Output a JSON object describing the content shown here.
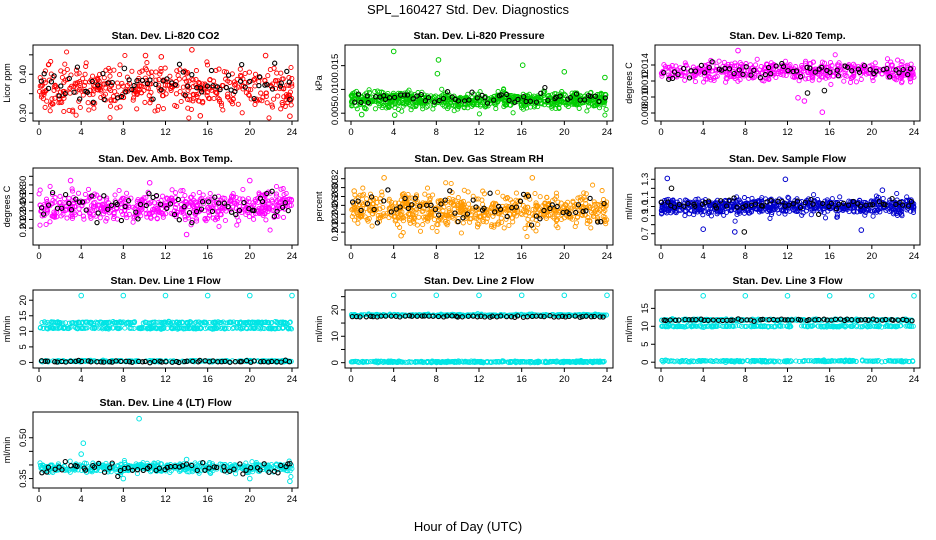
{
  "figure": {
    "title": "SPL_160427  Std. Dev. Diagnostics",
    "xlabel": "Hour of Day (UTC)"
  },
  "chart_data": [
    {
      "type": "scatter",
      "title": "Stan. Dev. Li-820 CO2",
      "xlabel": "",
      "ylabel": "Licor ppm",
      "xlim": [
        0,
        24
      ],
      "ylim": [
        0.29,
        0.465
      ],
      "x_ticks": [
        0,
        4,
        8,
        12,
        16,
        20,
        24
      ],
      "y_ticks": [
        0.3,
        0.35,
        0.4,
        0.45
      ],
      "y_tick_labels": [
        "0.30",
        "",
        "0.40",
        ""
      ],
      "series": [
        {
          "color": "#ff0000",
          "points_approx": 450,
          "mean": 0.365,
          "spread": 0.028,
          "outliers": [
            [
              10.1,
              0.448
            ],
            [
              11.6,
              0.445
            ],
            [
              14.5,
              0.463
            ],
            [
              21.5,
              0.448
            ],
            [
              23.8,
              0.292
            ],
            [
              15.3,
              0.293
            ]
          ]
        },
        {
          "color": "#000000",
          "points_approx": 70,
          "mean": 0.372,
          "spread": 0.022,
          "outliers": [
            [
              8.1,
              0.415
            ],
            [
              23.8,
              0.335
            ]
          ]
        }
      ]
    },
    {
      "type": "scatter",
      "title": "Stan. Dev. Li-820 Pressure",
      "xlabel": "",
      "ylabel": "kPa",
      "xlim": [
        0,
        24
      ],
      "ylim": [
        0.0042,
        0.0185
      ],
      "x_ticks": [
        0,
        4,
        8,
        12,
        16,
        20,
        24
      ],
      "y_ticks": [
        0.005,
        0.01,
        0.015
      ],
      "y_tick_labels": [
        "0.005",
        "0.010",
        "0.015"
      ],
      "series": [
        {
          "color": "#00cc00",
          "points_approx": 700,
          "mean": 0.0078,
          "spread": 0.0009,
          "outliers": [
            [
              4.0,
              0.018
            ],
            [
              8.2,
              0.0162
            ],
            [
              8.1,
              0.0133
            ],
            [
              16.1,
              0.0151
            ],
            [
              20.0,
              0.0137
            ],
            [
              23.8,
              0.0125
            ],
            [
              1.0,
              0.0047
            ],
            [
              4.1,
              0.0046
            ]
          ]
        },
        {
          "color": "#000000",
          "points_approx": 60,
          "mean": 0.0081,
          "spread": 0.0006,
          "outliers": []
        }
      ]
    },
    {
      "type": "scatter",
      "title": "Stan. Dev. Li-820 Temp.",
      "xlabel": "",
      "ylabel": "degrees C",
      "xlim": [
        0,
        24
      ],
      "ylim": [
        0.0075,
        0.016
      ],
      "x_ticks": [
        0,
        4,
        8,
        12,
        16,
        20,
        24
      ],
      "y_ticks": [
        0.008,
        0.01,
        0.012,
        0.014
      ],
      "y_tick_labels": [
        "0.008",
        "0.010",
        "0.012",
        "0.014"
      ],
      "series": [
        {
          "color": "#ff00ff",
          "points_approx": 480,
          "mean": 0.0132,
          "spread": 0.0006,
          "outliers": [
            [
              7.3,
              0.0158
            ],
            [
              15.3,
              0.0081
            ],
            [
              13.0,
              0.0099
            ],
            [
              13.6,
              0.0095
            ]
          ]
        },
        {
          "color": "#000000",
          "points_approx": 60,
          "mean": 0.0133,
          "spread": 0.0005,
          "outliers": [
            [
              13.9,
              0.0105
            ],
            [
              15.5,
              0.0108
            ]
          ]
        }
      ]
    },
    {
      "type": "scatter",
      "title": "Stan. Dev. Amb. Box Temp.",
      "xlabel": "",
      "ylabel": "degrees C",
      "xlim": [
        0,
        24
      ],
      "ylim": [
        0.17,
        0.33
      ],
      "x_ticks": [
        0,
        4,
        8,
        12,
        16,
        20,
        24
      ],
      "y_ticks": [
        0.2,
        0.22,
        0.24,
        0.26,
        0.28,
        0.3,
        0.32
      ],
      "y_tick_labels": [
        "0.20",
        "0.22",
        "0.24",
        "0.26",
        "0.28",
        "0.30",
        ""
      ],
      "series": [
        {
          "color": "#ff00ff",
          "points_approx": 550,
          "mean": 0.25,
          "spread": 0.018,
          "outliers": [
            [
              3.0,
              0.31
            ],
            [
              14.0,
              0.185
            ],
            [
              20.0,
              0.31
            ],
            [
              10.5,
              0.305
            ]
          ]
        },
        {
          "color": "#000000",
          "points_approx": 65,
          "mean": 0.255,
          "spread": 0.018,
          "outliers": []
        }
      ]
    },
    {
      "type": "scatter",
      "title": "Stan. Dev. Gas Stream RH",
      "xlabel": "",
      "ylabel": "percent",
      "xlim": [
        0,
        24
      ],
      "ylim": [
        0.18,
        0.335
      ],
      "x_ticks": [
        0,
        4,
        8,
        12,
        16,
        20,
        24
      ],
      "y_ticks": [
        0.2,
        0.22,
        0.24,
        0.26,
        0.28,
        0.3,
        0.32
      ],
      "y_tick_labels": [
        "0.20",
        "0.22",
        "0.24",
        "0.26",
        "0.28",
        "0.30",
        "0.32"
      ],
      "series": [
        {
          "color": "#ff9900",
          "points_approx": 650,
          "mean": 0.25,
          "spread": 0.018,
          "outliers": [
            [
              3.1,
              0.322
            ],
            [
              4.7,
              0.192
            ],
            [
              17.0,
              0.322
            ],
            [
              0.3,
              0.292
            ]
          ]
        },
        {
          "color": "#000000",
          "points_approx": 60,
          "mean": 0.255,
          "spread": 0.016,
          "outliers": []
        }
      ]
    },
    {
      "type": "scatter",
      "title": "Stan. Dev. Sample Flow",
      "xlabel": "",
      "ylabel": "ml/min",
      "xlim": [
        0,
        24
      ],
      "ylim": [
        0.62,
        1.38
      ],
      "x_ticks": [
        0,
        4,
        8,
        12,
        16,
        20,
        24
      ],
      "y_ticks": [
        0.7,
        0.8,
        0.9,
        1.0,
        1.1,
        1.2,
        1.3
      ],
      "y_tick_labels": [
        "0.7",
        "",
        "0.9",
        "1.0",
        "1.1",
        "",
        "1.3"
      ],
      "series": [
        {
          "color": "#0000cc",
          "points_approx": 650,
          "mean": 1.0,
          "spread": 0.045,
          "outliers": [
            [
              0.6,
              1.31
            ],
            [
              11.8,
              1.3
            ],
            [
              21.0,
              1.18
            ],
            [
              19.0,
              0.74
            ],
            [
              7.0,
              0.72
            ],
            [
              4.0,
              0.75
            ]
          ]
        },
        {
          "color": "#000000",
          "points_approx": 60,
          "mean": 1.02,
          "spread": 0.03,
          "outliers": [
            [
              1.0,
              1.2
            ],
            [
              7.9,
              0.72
            ]
          ]
        }
      ]
    },
    {
      "type": "scatter",
      "title": "Stan. Dev. Line 1 Flow",
      "xlabel": "",
      "ylabel": "ml/min",
      "xlim": [
        0,
        24
      ],
      "ylim": [
        -0.5,
        22
      ],
      "x_ticks": [
        0,
        4,
        8,
        12,
        16,
        20,
        24
      ],
      "y_ticks": [
        0,
        5,
        10,
        15,
        20
      ],
      "y_tick_labels": [
        "0",
        "5",
        "10",
        "15",
        "20"
      ],
      "series": [
        {
          "color": "#00e5e5",
          "bands": [
            12.8,
            11.0,
            0.4
          ],
          "points_approx": 700,
          "outliers": [
            [
              4.0,
              21.5
            ],
            [
              8.0,
              21.5
            ],
            [
              12.0,
              21.5
            ],
            [
              16.0,
              21.5
            ],
            [
              20.0,
              21.5
            ],
            [
              24.0,
              21.5
            ]
          ]
        },
        {
          "color": "#000000",
          "bands": [
            0.3
          ],
          "points_approx": 60,
          "outliers": []
        }
      ]
    },
    {
      "type": "scatter",
      "title": "Stan. Dev. Line 2 Flow",
      "xlabel": "",
      "ylabel": "ml/min",
      "xlim": [
        0,
        24
      ],
      "ylim": [
        -0.5,
        26
      ],
      "x_ticks": [
        0,
        4,
        8,
        12,
        16,
        20,
        24
      ],
      "y_ticks": [
        0,
        5,
        10,
        15,
        20,
        25
      ],
      "y_tick_labels": [
        "0",
        "",
        "10",
        "",
        "20",
        ""
      ],
      "series": [
        {
          "color": "#00e5e5",
          "bands": [
            18.0,
            0.3
          ],
          "points_approx": 700,
          "outliers": [
            [
              4.0,
              25.5
            ],
            [
              8.0,
              25.5
            ],
            [
              12.0,
              25.5
            ],
            [
              16.0,
              25.5
            ],
            [
              20.0,
              25.5
            ],
            [
              24.0,
              25.5
            ]
          ]
        },
        {
          "color": "#000000",
          "bands": [
            17.5
          ],
          "points_approx": 60,
          "outliers": []
        }
      ]
    },
    {
      "type": "scatter",
      "title": "Stan. Dev. Line 3 Flow",
      "xlabel": "",
      "ylabel": "ml/min",
      "xlim": [
        0,
        24
      ],
      "ylim": [
        -0.5,
        19
      ],
      "x_ticks": [
        0,
        4,
        8,
        12,
        16,
        20,
        24
      ],
      "y_ticks": [
        0,
        5,
        10,
        15
      ],
      "y_tick_labels": [
        "0",
        "5",
        "10",
        "15"
      ],
      "series": [
        {
          "color": "#00e5e5",
          "bands": [
            11.8,
            10.0,
            0.3
          ],
          "points_approx": 700,
          "outliers": [
            [
              4.0,
              18.5
            ],
            [
              8.0,
              18.5
            ],
            [
              12.0,
              18.5
            ],
            [
              16.0,
              18.5
            ],
            [
              20.0,
              18.5
            ],
            [
              24.0,
              18.5
            ]
          ]
        },
        {
          "color": "#000000",
          "bands": [
            11.8
          ],
          "points_approx": 60,
          "outliers": []
        }
      ]
    },
    {
      "type": "scatter",
      "title": "Stan. Dev. Line 4 (LT) Flow",
      "xlabel": "",
      "ylabel": "ml/min",
      "xlim": [
        0,
        24
      ],
      "ylim": [
        0.33,
        0.58
      ],
      "x_ticks": [
        0,
        4,
        8,
        12,
        16,
        20,
        24
      ],
      "y_ticks": [
        0.35,
        0.4,
        0.45,
        0.5
      ],
      "y_tick_labels": [
        "0.35",
        "",
        "",
        "0.50"
      ],
      "series": [
        {
          "color": "#00e5e5",
          "points_approx": 450,
          "mean": 0.39,
          "spread": 0.009,
          "outliers": [
            [
              9.5,
              0.57
            ],
            [
              4.2,
              0.48
            ],
            [
              4.0,
              0.44
            ],
            [
              14.0,
              0.42
            ],
            [
              8.0,
              0.35
            ],
            [
              20.0,
              0.35
            ],
            [
              23.8,
              0.34
            ]
          ]
        },
        {
          "color": "#000000",
          "points_approx": 60,
          "mean": 0.39,
          "spread": 0.012,
          "outliers": [
            [
              23.8,
              0.405
            ]
          ]
        }
      ]
    }
  ]
}
